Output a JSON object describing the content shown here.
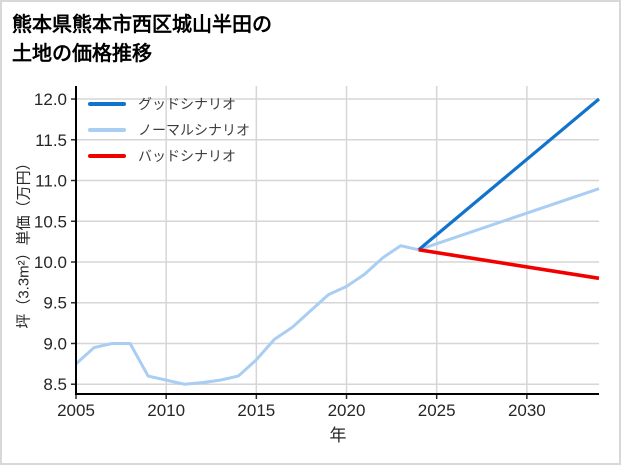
{
  "title": {
    "line1": "熊本県熊本市西区城山半田の",
    "line2": "土地の価格推移"
  },
  "chart_data": {
    "type": "line",
    "title": "熊本県熊本市西区城山半田の土地の価格推移",
    "xlabel": "年",
    "ylabel": "坪（3.3m²）単価（万円）",
    "xlim": [
      2005,
      2034
    ],
    "ylim": [
      8.38,
      12.16
    ],
    "xticks": [
      "2005",
      "2010",
      "2015",
      "2020",
      "2025",
      "2030"
    ],
    "yticks": [
      "8.5",
      "9.0",
      "9.5",
      "10.0",
      "10.5",
      "11.0",
      "11.5",
      "12.0"
    ],
    "grid": true,
    "grid_color": "#d6d6d6",
    "spine_color": "#000000",
    "legend_position": "upper-left",
    "series": [
      {
        "id": "good-scenario",
        "name": "グッドシナリオ",
        "color": "#1273cd",
        "line_width": 3.2,
        "zorder": 2,
        "x": [
          2024,
          2034
        ],
        "values": [
          10.15,
          12.0
        ]
      },
      {
        "id": "normal-scenario",
        "name": "ノーマルシナリオ",
        "color": "#a9cdf3",
        "line_width": 3.0,
        "zorder": 1,
        "x": [
          2005,
          2006,
          2007,
          2008,
          2009,
          2010,
          2011,
          2012,
          2013,
          2014,
          2015,
          2016,
          2017,
          2018,
          2019,
          2020,
          2021,
          2022,
          2023,
          2024,
          2034
        ],
        "values": [
          8.75,
          8.95,
          9.0,
          9.0,
          8.6,
          8.55,
          8.5,
          8.52,
          8.55,
          8.6,
          8.8,
          9.05,
          9.2,
          9.4,
          9.6,
          9.7,
          9.85,
          10.05,
          10.2,
          10.15,
          10.9
        ]
      },
      {
        "id": "bad-scenario",
        "name": "バッドシナリオ",
        "color": "#f20000",
        "line_width": 3.6,
        "zorder": 3,
        "x": [
          2024,
          2034
        ],
        "values": [
          10.15,
          9.8
        ]
      }
    ]
  }
}
